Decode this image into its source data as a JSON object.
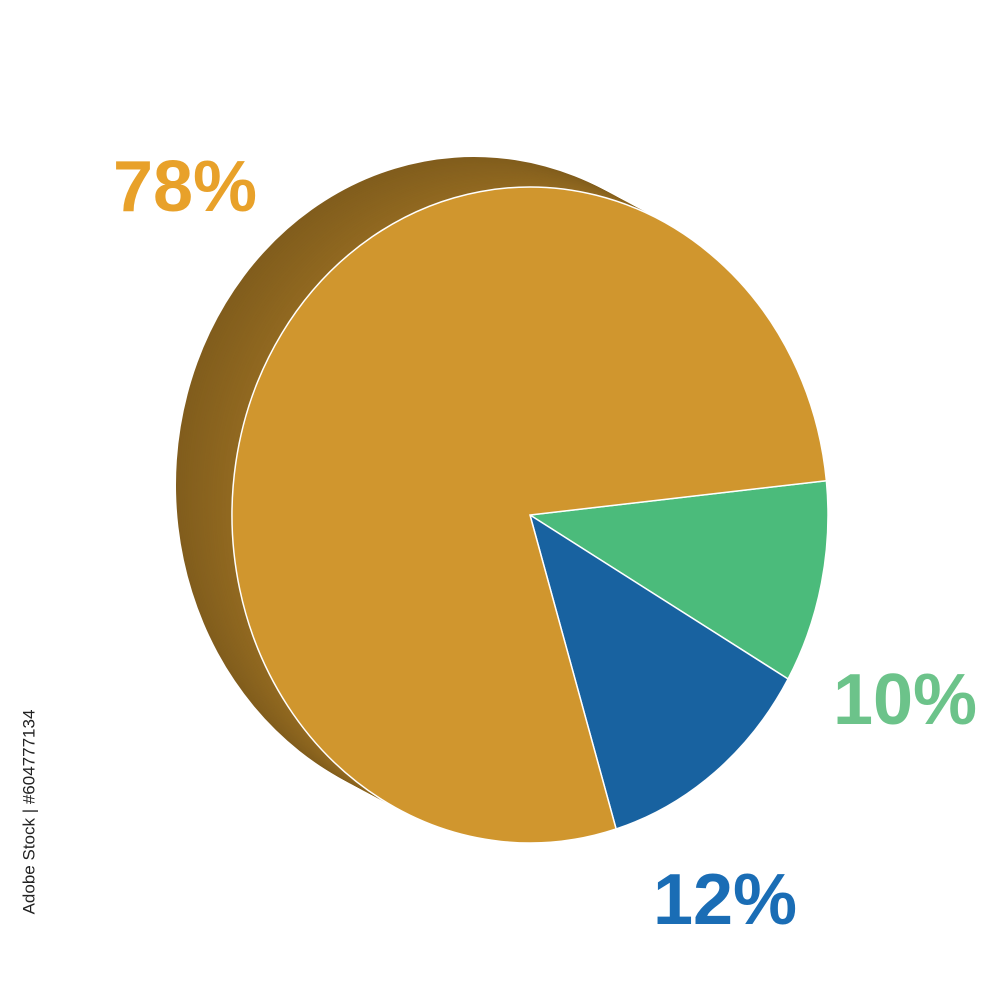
{
  "chart_data": {
    "type": "pie",
    "categories": [
      null,
      null,
      null
    ],
    "values": [
      10,
      12,
      78
    ],
    "value_labels": [
      "10%",
      "12%",
      "78%"
    ],
    "colors": [
      "#4bbb7b",
      "#1862a0",
      "#d0962e"
    ],
    "source": "Adobe Stock | #604777134"
  }
}
